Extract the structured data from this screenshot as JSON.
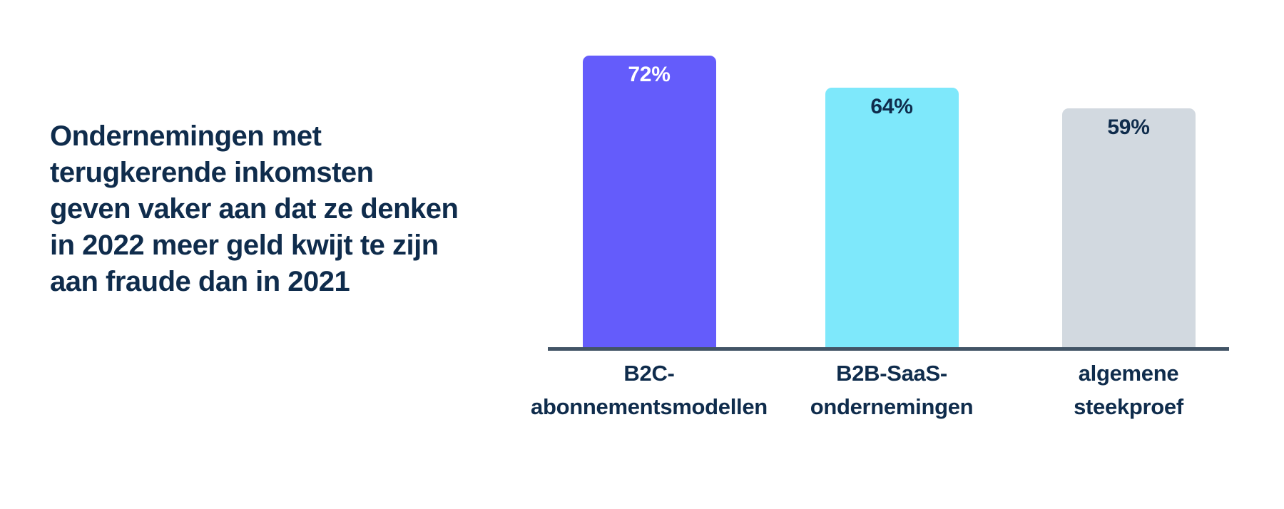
{
  "page": {
    "background_color": "#ffffff",
    "text_color": "#0f2c4c"
  },
  "headline": {
    "lines": [
      "Ondernemingen met",
      "terugkerende inkomsten",
      "geven vaker aan dat ze denken",
      "in 2022 meer geld kwijt te zijn",
      "aan fraude dan in 2021"
    ],
    "full_text": "Ondernemingen met terugkerende inkomsten geven vaker aan dat ze denken in 2022 meer geld kwijt te zijn aan fraude dan in 2021",
    "color": "#0f2c4c"
  },
  "chart_data": {
    "type": "bar",
    "categories": [
      "B2C-abonnementsmodellen",
      "B2B-SaaS-ondernemingen",
      "algemene steekproef"
    ],
    "category_lines": [
      [
        "B2C-",
        "abonnementsmodellen"
      ],
      [
        "B2B-SaaS-",
        "ondernemingen"
      ],
      [
        "algemene",
        "steekproef"
      ]
    ],
    "values": [
      72,
      64,
      59
    ],
    "value_labels": [
      "72%",
      "64%",
      "59%"
    ],
    "bar_colors": [
      "#645cfb",
      "#7ee8fb",
      "#d2d9e0"
    ],
    "value_label_colors": [
      "#ffffff",
      "#0f2c4c",
      "#0f2c4c"
    ],
    "title": "",
    "xlabel": "",
    "ylabel": "",
    "ylim": [
      0,
      100
    ],
    "grid": false,
    "legend": false,
    "axis_color": "#425466",
    "value_unit": "%"
  }
}
